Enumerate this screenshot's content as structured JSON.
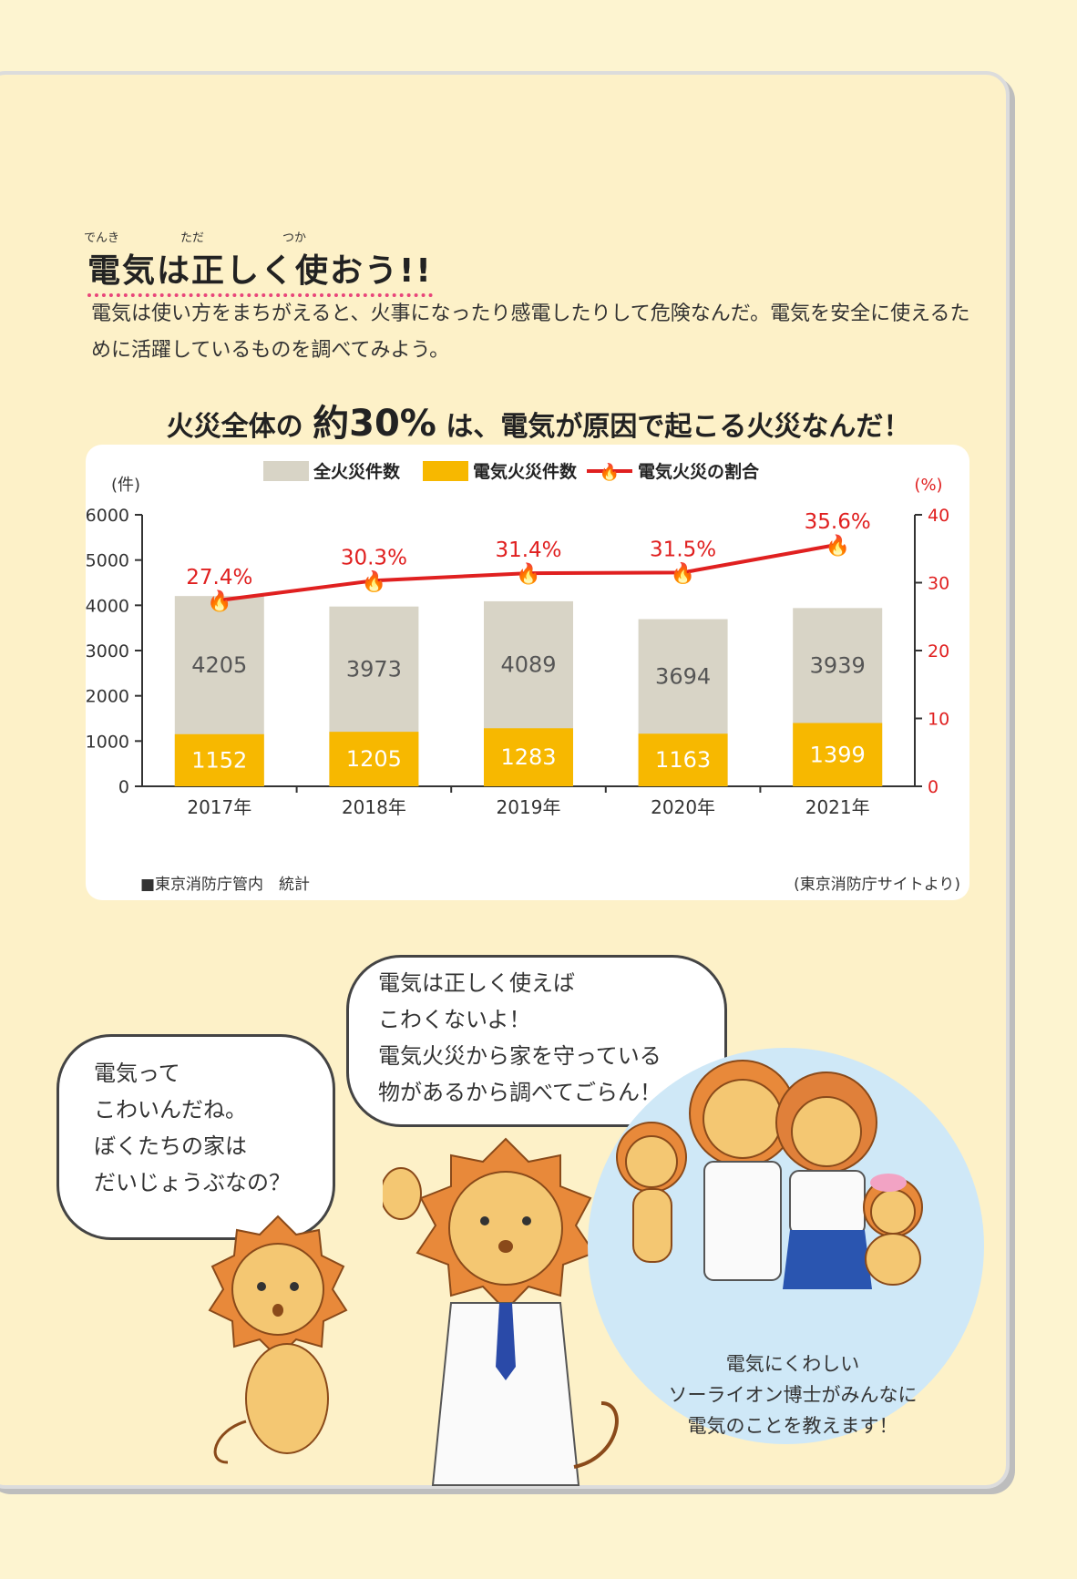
{
  "title": "電気は正しく使おう!!",
  "title_ruby": {
    "denki": "でんき",
    "tada": "ただ",
    "tsuka": "つか"
  },
  "intro": "電気は使い方をまちがえると、火事になったり感電したりして危険なんだ。電気を安全に使えるために活躍しているものを調べてみよう。",
  "headline": {
    "before": "火災全体の ",
    "emph": "約30%",
    "after": " は、電気が原因で起こる火災なんだ！"
  },
  "legend": {
    "all": "全火災件数",
    "electric": "電気火災件数",
    "ratio": "電気火災の割合"
  },
  "left_axis_unit": "(件)",
  "right_axis_unit": "(%)",
  "source_left": "■東京消防庁管内　統計",
  "source_right": "(東京消防庁サイトより)",
  "colors": {
    "all": "#d8d4c6",
    "electric": "#f7b800",
    "line": "#e02020",
    "accent": "#e8457a"
  },
  "chart_data": {
    "type": "bar",
    "categories": [
      "2017年",
      "2018年",
      "2019年",
      "2020年",
      "2021年"
    ],
    "series": [
      {
        "name": "全火災件数",
        "values": [
          4205,
          3973,
          4089,
          3694,
          3939
        ]
      },
      {
        "name": "電気火災件数",
        "values": [
          1152,
          1205,
          1283,
          1163,
          1399
        ]
      },
      {
        "name": "電気火災の割合",
        "values": [
          27.4,
          30.3,
          31.4,
          31.5,
          35.6
        ],
        "axis": "right",
        "type": "line"
      }
    ],
    "ylim": [
      0,
      6000
    ],
    "y2lim": [
      0,
      40
    ],
    "yticks": [
      0,
      1000,
      2000,
      3000,
      4000,
      5000,
      6000
    ],
    "y2ticks": [
      0,
      10,
      20,
      30,
      40
    ],
    "ratio_labels": [
      "27.4%",
      "30.3%",
      "31.4%",
      "31.5%",
      "35.6%"
    ]
  },
  "bubble_left": [
    "電気って",
    "こわいんだね。",
    "ぼくたちの家は",
    "だいじょうぶなの？"
  ],
  "bubble_right": [
    "電気は正しく使えば",
    "こわくないよ！",
    "電気火災から家を守っている",
    "物があるから調べてごらん！"
  ],
  "caption": [
    "電気にくわしい",
    "ソーライオン博士がみんなに",
    "電気のことを教えます！"
  ]
}
